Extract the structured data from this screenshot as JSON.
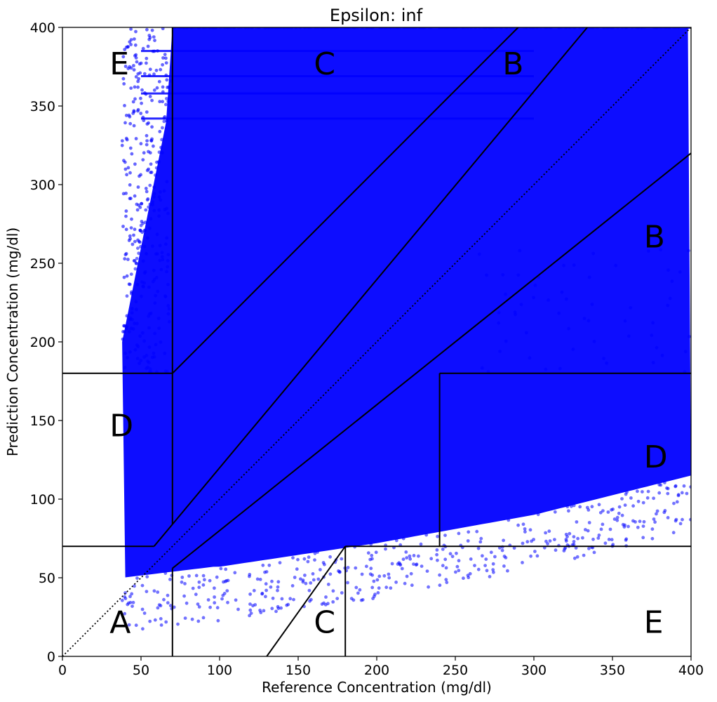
{
  "chart_data": {
    "type": "scatter",
    "title": "Epsilon: inf",
    "xlabel": "Reference Concentration (mg/dl)",
    "ylabel": "Prediction Concentration (mg/dl)",
    "xlim": [
      0,
      400
    ],
    "ylim": [
      0,
      400
    ],
    "xticks": [
      "0",
      "50",
      "100",
      "150",
      "200",
      "250",
      "300",
      "350",
      "400"
    ],
    "yticks": [
      "0",
      "50",
      "100",
      "150",
      "200",
      "250",
      "300",
      "350",
      "400"
    ],
    "xtick_values": [
      0,
      50,
      100,
      150,
      200,
      250,
      300,
      350,
      400
    ],
    "ytick_values": [
      0,
      50,
      100,
      150,
      200,
      250,
      300,
      350,
      400
    ],
    "grid": false,
    "point_color": "#0000ff",
    "line_color": "#000000",
    "series": [
      {
        "points_description": "dense blue scatter",
        "sample_points": [
          [
            38,
            60
          ],
          [
            38,
            150
          ],
          [
            38,
            280
          ],
          [
            45,
            120
          ],
          [
            60,
            200
          ],
          [
            70,
            290
          ],
          [
            80,
            380
          ],
          [
            100,
            120
          ],
          [
            120,
            260
          ],
          [
            150,
            320
          ],
          [
            160,
            90
          ],
          [
            200,
            150
          ],
          [
            250,
            380
          ],
          [
            300,
            300
          ],
          [
            320,
            200
          ],
          [
            350,
            150
          ],
          [
            380,
            100
          ],
          [
            390,
            250
          ],
          [
            400,
            400
          ]
        ]
      }
    ],
    "zone_lines": [
      {
        "x": [
          0,
          400
        ],
        "y": [
          0,
          400
        ],
        "style": "dotted"
      },
      {
        "x": [
          0,
          70
        ],
        "y": [
          180,
          180
        ]
      },
      {
        "x": [
          70,
          290
        ],
        "y": [
          180,
          400
        ]
      },
      {
        "x": [
          70,
          70
        ],
        "y": [
          84,
          400
        ]
      },
      {
        "x": [
          70,
          334
        ],
        "y": [
          84,
          400
        ]
      },
      {
        "x": [
          0,
          58.3
        ],
        "y": [
          70,
          70
        ]
      },
      {
        "x": [
          58.3,
          70
        ],
        "y": [
          70,
          84
        ]
      },
      {
        "x": [
          70,
          400
        ],
        "y": [
          56,
          320
        ]
      },
      {
        "x": [
          70,
          70
        ],
        "y": [
          0,
          56
        ]
      },
      {
        "x": [
          130,
          180
        ],
        "y": [
          0,
          70
        ]
      },
      {
        "x": [
          180,
          180
        ],
        "y": [
          0,
          70
        ]
      },
      {
        "x": [
          180,
          400
        ],
        "y": [
          70,
          70
        ]
      },
      {
        "x": [
          240,
          240
        ],
        "y": [
          70,
          180
        ]
      },
      {
        "x": [
          240,
          400
        ],
        "y": [
          180,
          180
        ]
      }
    ],
    "zone_labels": [
      {
        "text": "A",
        "x": 30,
        "y": 15
      },
      {
        "text": "B",
        "x": 370,
        "y": 260
      },
      {
        "text": "B",
        "x": 280,
        "y": 370
      },
      {
        "text": "C",
        "x": 160,
        "y": 370
      },
      {
        "text": "C",
        "x": 160,
        "y": 15
      },
      {
        "text": "D",
        "x": 30,
        "y": 140
      },
      {
        "text": "D",
        "x": 370,
        "y": 120
      },
      {
        "text": "E",
        "x": 30,
        "y": 370
      },
      {
        "text": "E",
        "x": 370,
        "y": 15
      }
    ]
  }
}
